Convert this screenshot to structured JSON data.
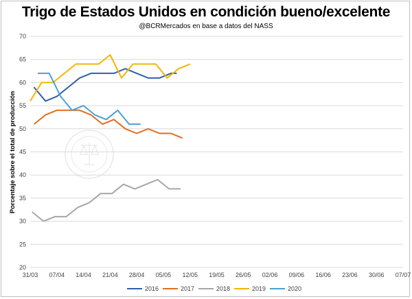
{
  "chart_data": {
    "type": "line",
    "title": "Trigo de Estados Unidos en condición bueno/excelente",
    "subtitle": "@BCRMercados en base a datos del NASS",
    "ylabel": "Porcentaje sobre el total de producción",
    "xlabel": "",
    "ylim": [
      20,
      70
    ],
    "yticks": [
      20,
      25,
      30,
      35,
      40,
      45,
      50,
      55,
      60,
      65,
      70
    ],
    "x_ticks": [
      "31/03",
      "07/04",
      "14/04",
      "21/04",
      "28/04",
      "05/05",
      "12/05",
      "19/05",
      "26/05",
      "02/06",
      "09/06",
      "16/06",
      "23/06",
      "30/06",
      "07/07"
    ],
    "grid": "horizontal",
    "legend_position": "bottom",
    "series": [
      {
        "name": "2016",
        "color": "#2e5ea8",
        "x": [
          1,
          4,
          7,
          10,
          13,
          16,
          19,
          22,
          25,
          28,
          31,
          34,
          37
        ],
        "values": [
          59,
          56,
          57,
          59,
          61,
          62,
          62,
          62,
          63,
          62,
          61,
          61,
          62
        ],
        "extra": [
          [
            38.5,
            62
          ]
        ]
      },
      {
        "name": "2017",
        "color": "#e46c1a",
        "x": [
          1,
          4,
          7,
          10,
          13,
          16,
          19,
          22,
          25,
          28,
          31,
          34,
          37,
          40
        ],
        "values": [
          51,
          53,
          54,
          54,
          54,
          53,
          51,
          52,
          50,
          49,
          50,
          49,
          49,
          48
        ]
      },
      {
        "name": "2018",
        "color": "#a6a6a6",
        "x": [
          0.5,
          3.5,
          6.5,
          9.5,
          12.5,
          15.5,
          18.5,
          21.5,
          24.5,
          27.5,
          30.5,
          33.5,
          36.5,
          39.5
        ],
        "values": [
          32,
          30,
          31,
          31,
          33,
          34,
          36,
          36,
          38,
          37,
          38,
          39,
          37,
          37
        ]
      },
      {
        "name": "2019",
        "color": "#f4b400",
        "x": [
          0,
          3,
          6,
          9,
          12,
          15,
          18,
          21,
          24,
          27,
          30,
          33,
          36,
          39,
          42
        ],
        "values": [
          56,
          60,
          60,
          62,
          64,
          64,
          64,
          66,
          61,
          64,
          64,
          64,
          61,
          63,
          64
        ]
      },
      {
        "name": "2020",
        "color": "#4a9fd4",
        "x": [
          2,
          5,
          8,
          11,
          14,
          17,
          20,
          23,
          26,
          29
        ],
        "values": [
          62,
          62,
          57,
          54,
          55,
          53,
          52,
          54,
          51,
          51
        ]
      }
    ]
  }
}
